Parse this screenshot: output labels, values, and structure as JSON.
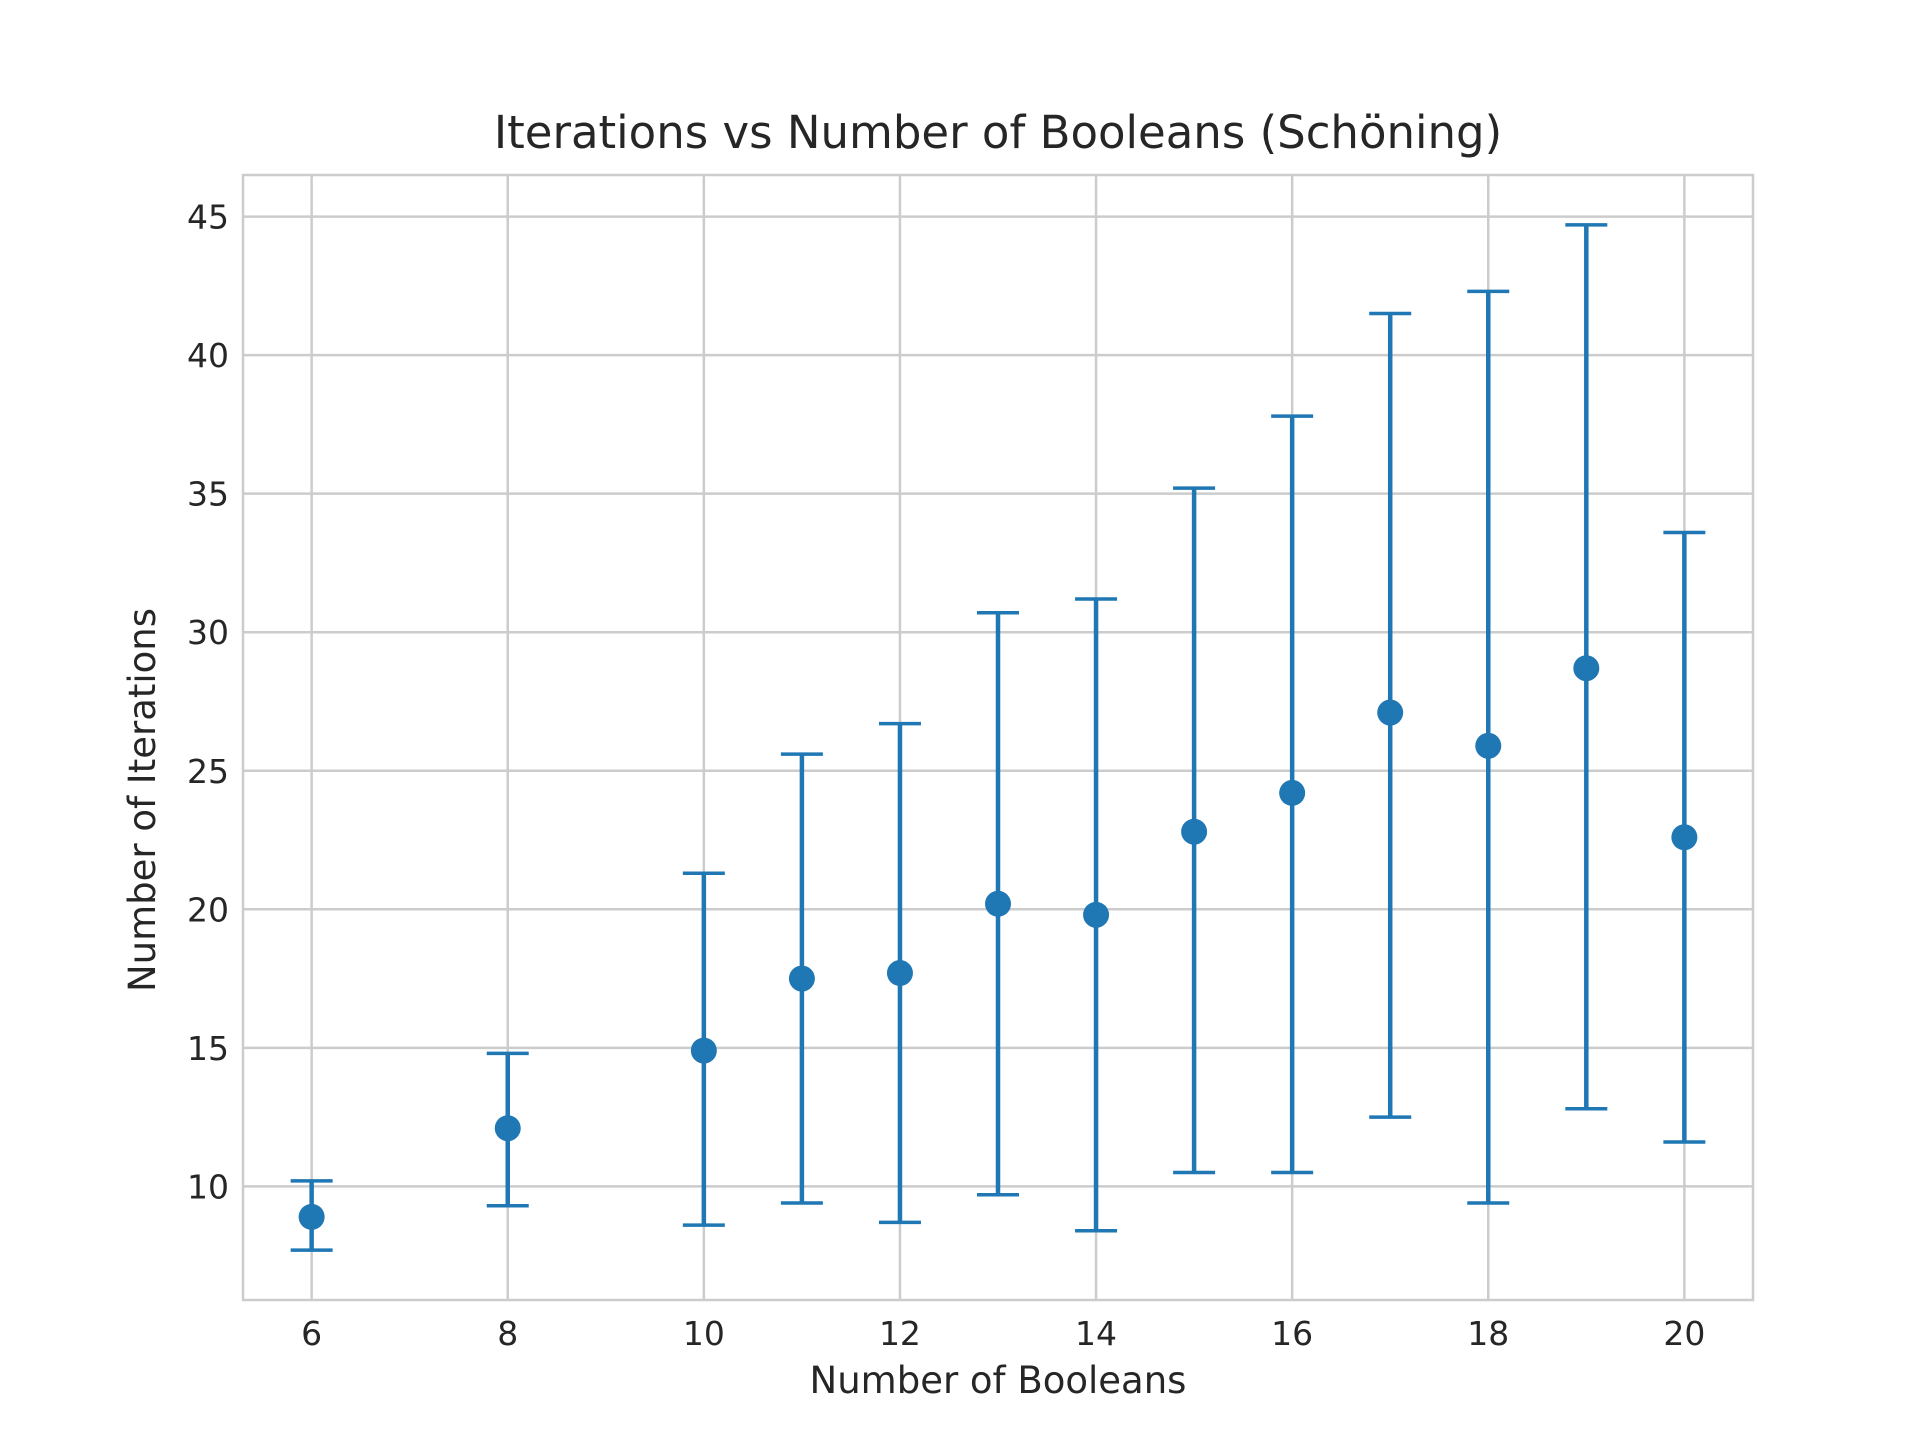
{
  "chart_data": {
    "type": "errorbar",
    "title": "Iterations vs Number of Booleans (Schöning)",
    "xlabel": "Number of Booleans",
    "ylabel": "Number of Iterations",
    "xlim": [
      5.3,
      20.7
    ],
    "ylim": [
      5.9,
      46.5
    ],
    "xticks": [
      6,
      8,
      10,
      12,
      14,
      16,
      18,
      20
    ],
    "yticks": [
      10,
      15,
      20,
      25,
      30,
      35,
      40,
      45
    ],
    "grid": true,
    "series": [
      {
        "color": "#1f77b4",
        "points": [
          {
            "x": 6,
            "y": 8.9,
            "low": 7.7,
            "high": 10.2
          },
          {
            "x": 8,
            "y": 12.1,
            "low": 9.3,
            "high": 14.8
          },
          {
            "x": 10,
            "y": 14.9,
            "low": 8.6,
            "high": 21.3
          },
          {
            "x": 11,
            "y": 17.5,
            "low": 9.4,
            "high": 25.6
          },
          {
            "x": 12,
            "y": 17.7,
            "low": 8.7,
            "high": 26.7
          },
          {
            "x": 13,
            "y": 20.2,
            "low": 9.7,
            "high": 30.7
          },
          {
            "x": 14,
            "y": 19.8,
            "low": 8.4,
            "high": 31.2
          },
          {
            "x": 15,
            "y": 22.8,
            "low": 10.5,
            "high": 35.2
          },
          {
            "x": 16,
            "y": 24.2,
            "low": 10.5,
            "high": 37.8
          },
          {
            "x": 17,
            "y": 27.1,
            "low": 12.5,
            "high": 41.5
          },
          {
            "x": 18,
            "y": 25.9,
            "low": 9.4,
            "high": 42.3
          },
          {
            "x": 19,
            "y": 28.7,
            "low": 12.8,
            "high": 44.7
          },
          {
            "x": 20,
            "y": 22.6,
            "low": 11.6,
            "high": 33.6
          }
        ]
      }
    ]
  }
}
